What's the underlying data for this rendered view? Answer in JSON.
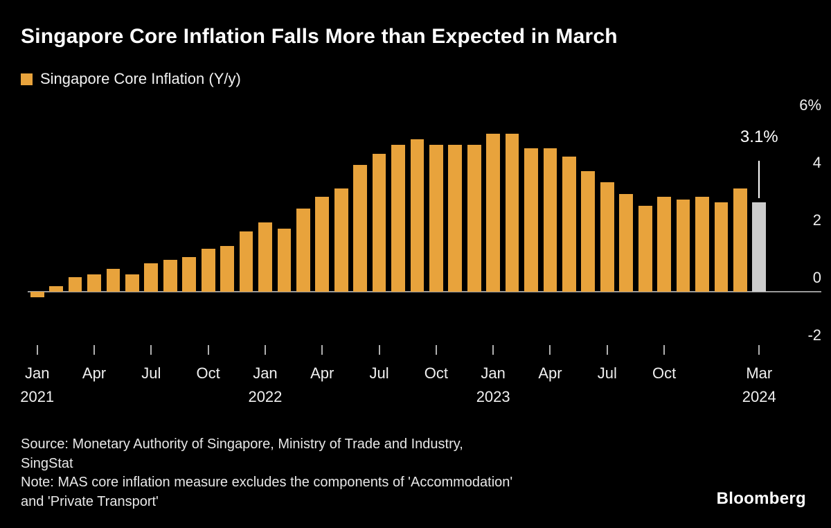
{
  "title": "Singapore Core Inflation Falls More than Expected in March",
  "legend": {
    "label": "Singapore Core Inflation (Y/y)"
  },
  "annotation": {
    "label": "3.1%"
  },
  "source_lines": [
    "Source: Monetary Authority of Singapore, Ministry of Trade and Industry,",
    "SingStat",
    "Note: MAS core inflation measure excludes the components of 'Accommodation'",
    "and 'Private Transport'"
  ],
  "branding": "Bloomberg",
  "colors": {
    "background": "#000000",
    "bar": "#E8A33C",
    "highlight_bar": "#CCCCCC",
    "text": "#FFFFFF",
    "axis": "#B0B0B0"
  },
  "chart_data": {
    "type": "bar",
    "title": "Singapore Core Inflation Falls More than Expected in March",
    "legend_entries": [
      "Singapore Core Inflation (Y/y)"
    ],
    "xlabel": "",
    "ylabel": "%",
    "ylim": [
      -2,
      6
    ],
    "grid": false,
    "legend_position": "top-left",
    "x": [
      "Jan 2021",
      "Feb 2021",
      "Mar 2021",
      "Apr 2021",
      "May 2021",
      "Jun 2021",
      "Jul 2021",
      "Aug 2021",
      "Sep 2021",
      "Oct 2021",
      "Nov 2021",
      "Dec 2021",
      "Jan 2022",
      "Feb 2022",
      "Mar 2022",
      "Apr 2022",
      "May 2022",
      "Jun 2022",
      "Jul 2022",
      "Aug 2022",
      "Sep 2022",
      "Oct 2022",
      "Nov 2022",
      "Dec 2022",
      "Jan 2023",
      "Feb 2023",
      "Mar 2023",
      "Apr 2023",
      "May 2023",
      "Jun 2023",
      "Jul 2023",
      "Aug 2023",
      "Sep 2023",
      "Oct 2023",
      "Nov 2023",
      "Dec 2023",
      "Jan 2024",
      "Feb 2024",
      "Mar 2024"
    ],
    "values": [
      -0.2,
      0.2,
      0.5,
      0.6,
      0.8,
      0.6,
      1.0,
      1.1,
      1.2,
      1.5,
      1.6,
      2.1,
      2.4,
      2.2,
      2.9,
      3.3,
      3.6,
      4.4,
      4.8,
      5.1,
      5.3,
      5.1,
      5.1,
      5.1,
      5.5,
      5.5,
      5.0,
      5.0,
      4.7,
      4.2,
      3.8,
      3.4,
      3.0,
      3.3,
      3.2,
      3.3,
      3.1,
      3.6,
      3.1
    ],
    "highlight_index": 38,
    "highlight_label": "3.1%",
    "yticks": [
      {
        "value": 6,
        "label": "6%"
      },
      {
        "value": 4,
        "label": "4"
      },
      {
        "value": 2,
        "label": "2"
      },
      {
        "value": 0,
        "label": "0"
      },
      {
        "value": -2,
        "label": "-2"
      }
    ],
    "xticks": [
      {
        "index": 0,
        "month": "Jan",
        "year": "2021"
      },
      {
        "index": 3,
        "month": "Apr"
      },
      {
        "index": 6,
        "month": "Jul"
      },
      {
        "index": 9,
        "month": "Oct"
      },
      {
        "index": 12,
        "month": "Jan",
        "year": "2022"
      },
      {
        "index": 15,
        "month": "Apr"
      },
      {
        "index": 18,
        "month": "Jul"
      },
      {
        "index": 21,
        "month": "Oct"
      },
      {
        "index": 24,
        "month": "Jan",
        "year": "2023"
      },
      {
        "index": 27,
        "month": "Apr"
      },
      {
        "index": 30,
        "month": "Jul"
      },
      {
        "index": 33,
        "month": "Oct"
      },
      {
        "index": 38,
        "month": "Mar",
        "year": "2024"
      }
    ]
  }
}
